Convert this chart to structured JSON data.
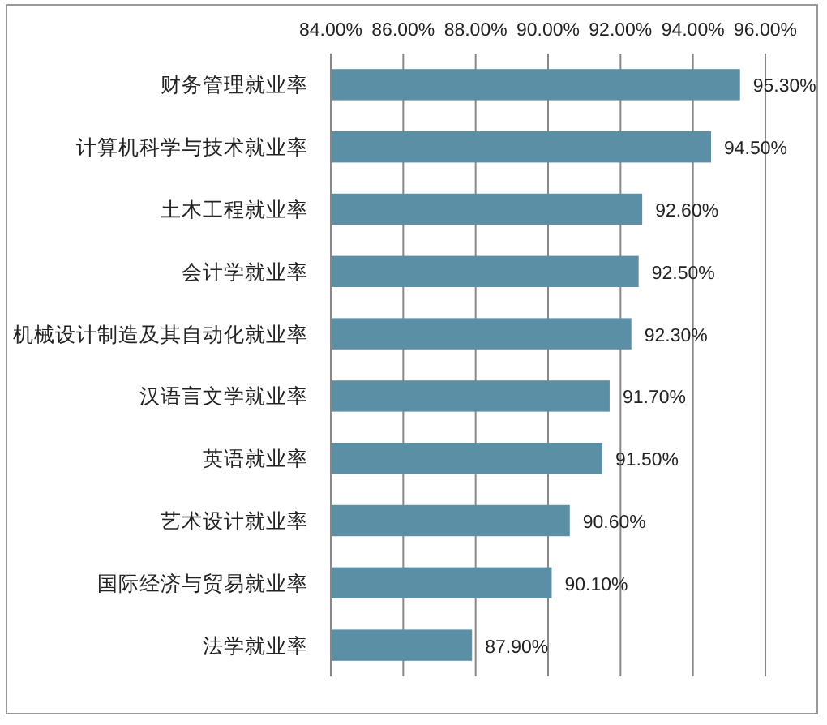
{
  "chart_data": {
    "type": "bar",
    "orientation": "horizontal",
    "categories": [
      "财务管理就业率",
      "计算机科学与技术就业率",
      "土木工程就业率",
      "会计学就业率",
      "机械设计制造及其自动化就业率",
      "汉语言文学就业率",
      "英语就业率",
      "艺术设计就业率",
      "国际经济与贸易就业率",
      "法学就业率"
    ],
    "values": [
      95.3,
      94.5,
      92.6,
      92.5,
      92.3,
      91.7,
      91.5,
      90.6,
      90.1,
      87.9
    ],
    "value_labels": [
      "95.30%",
      "94.50%",
      "92.60%",
      "92.50%",
      "92.30%",
      "91.70%",
      "91.50%",
      "90.60%",
      "90.10%",
      "87.90%"
    ],
    "color": "#5a8fa6",
    "xlim": [
      84,
      96
    ],
    "xticks": [
      {
        "value": 84,
        "label": "84.00%"
      },
      {
        "value": 86,
        "label": "86.00%"
      },
      {
        "value": 88,
        "label": "88.00%"
      },
      {
        "value": 90,
        "label": "90.00%"
      },
      {
        "value": 92,
        "label": "92.00%"
      },
      {
        "value": 94,
        "label": "94.00%"
      },
      {
        "value": 96,
        "label": "96.00%"
      }
    ],
    "grid": "x"
  }
}
